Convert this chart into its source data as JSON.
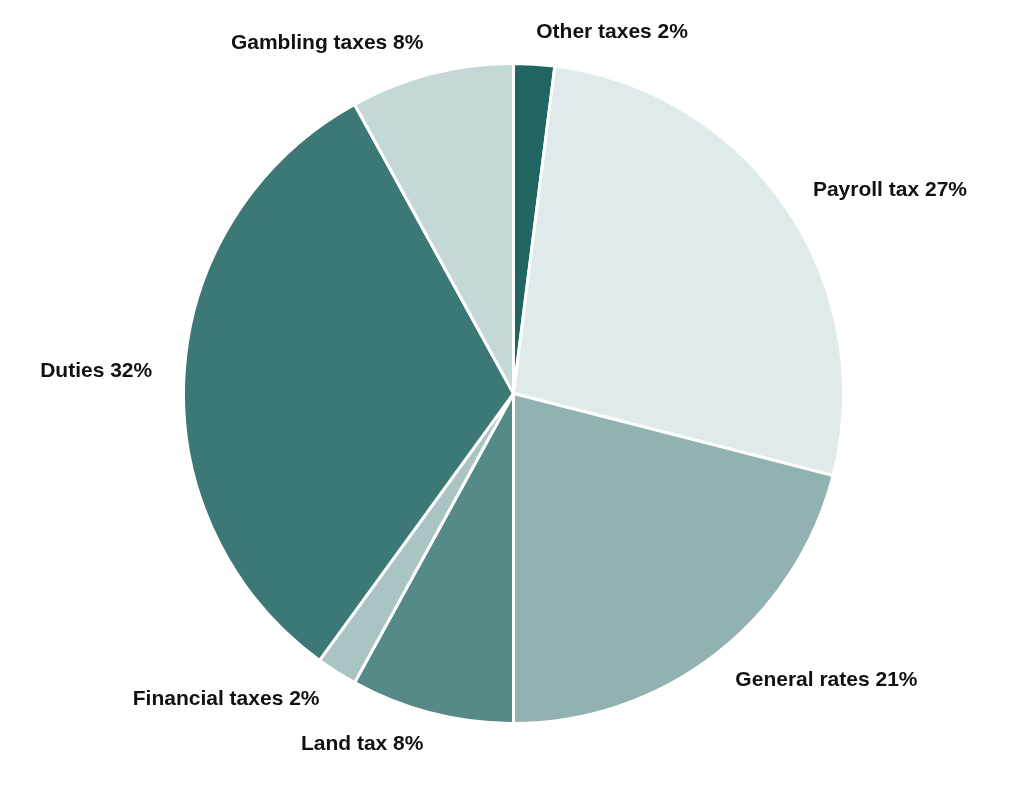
{
  "chart_data": {
    "type": "pie",
    "categories": [
      "Other taxes",
      "Payroll tax",
      "General rates",
      "Land tax",
      "Financial taxes",
      "Duties",
      "Gambling taxes"
    ],
    "values": [
      2,
      27,
      21,
      8,
      2,
      32,
      8
    ],
    "value_labels": [
      "2%",
      "27%",
      "21%",
      "8%",
      "2%",
      "32%",
      "8%"
    ],
    "colors": [
      "#226663",
      "#e0eaea",
      "#92b2b2",
      "#568a89",
      "#aac4c4",
      "#3c7876",
      "#c5d8d8"
    ]
  }
}
